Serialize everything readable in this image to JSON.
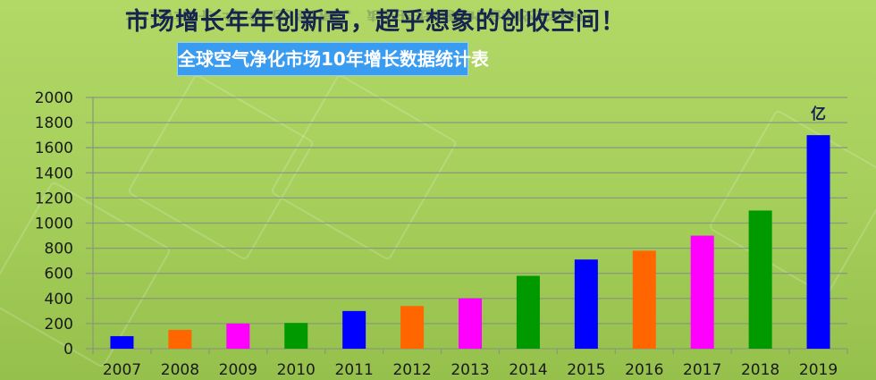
{
  "headline": "市场增长年年创新高，超乎想象的创收空间！",
  "chart_data": {
    "type": "bar",
    "title": "全球空气净化市场10年增长数据统计表",
    "unit_label": "亿",
    "categories": [
      "2007",
      "2008",
      "2009",
      "2010",
      "2011",
      "2012",
      "2013",
      "2014",
      "2015",
      "2016",
      "2017",
      "2018",
      "2019"
    ],
    "values": [
      100,
      150,
      200,
      205,
      300,
      340,
      400,
      580,
      710,
      780,
      900,
      1100,
      1700
    ],
    "colors": [
      "#0000ff",
      "#ff6600",
      "#ff00ff",
      "#009900",
      "#0000ff",
      "#ff6600",
      "#ff00ff",
      "#009900",
      "#0000ff",
      "#ff6600",
      "#ff00ff",
      "#009900",
      "#0000ff"
    ],
    "ylim": [
      0,
      2000
    ],
    "yticks": [
      0,
      200,
      400,
      600,
      800,
      1000,
      1200,
      1400,
      1600,
      1800,
      2000
    ],
    "grid": true,
    "legend": "none"
  }
}
